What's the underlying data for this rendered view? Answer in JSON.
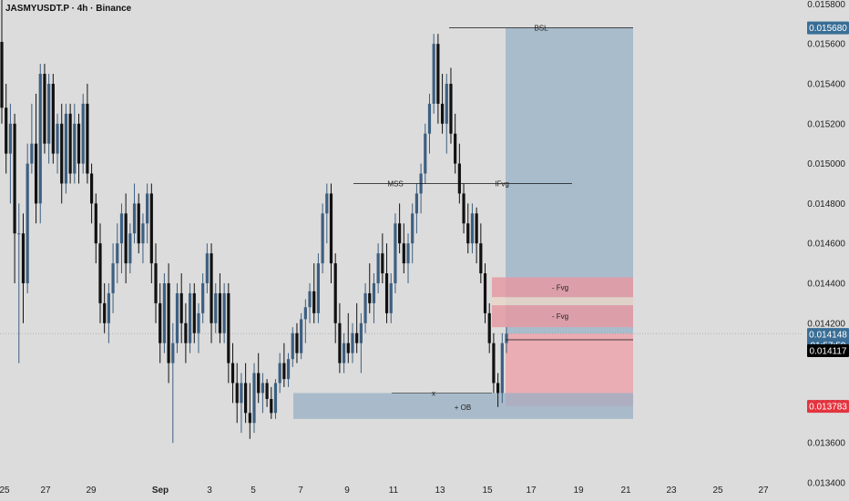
{
  "header": {
    "symbol": "JASMYUSDT.P",
    "sep1": " · ",
    "interval": "4h",
    "sep2": " · ",
    "exchange": "Binance"
  },
  "colors": {
    "bull": "#3d5f80",
    "bear": "#111111",
    "target_zone": "#9fb6c9",
    "ob_zone": "#98b0c4",
    "fvg_zone": "#e59aa3",
    "stop_zone": "#eba4ab",
    "tag_blue": "#3a6e96",
    "tag_black": "#000000",
    "tag_red": "#e3343f"
  },
  "chart_data": {
    "type": "candlestick",
    "ylim": [
      0.0134,
      0.01582
    ],
    "y_ticks": [
      "0.015800",
      "0.015600",
      "0.015400",
      "0.015200",
      "0.015000",
      "0.014800",
      "0.014600",
      "0.014400",
      "0.014200",
      "0.013800",
      "0.013600",
      "0.013400"
    ],
    "x_ticks": [
      "25",
      "27",
      "29",
      "Sep",
      "3",
      "5",
      "7",
      "9",
      "11",
      "13",
      "15",
      "17",
      "19",
      "21",
      "23",
      "25",
      "27"
    ],
    "price_tags": [
      {
        "label": "0.015680",
        "value": 0.01568,
        "style": "blue"
      },
      {
        "label": "0.014148",
        "value": 0.014148,
        "style": "blue"
      },
      {
        "label": "01:57:59",
        "value": 0.0141,
        "style": "blue"
      },
      {
        "label": "0.014117",
        "value": 0.014117,
        "style": "black"
      },
      {
        "label": "0.013783",
        "value": 0.013783,
        "style": "red"
      }
    ],
    "annotations": {
      "bsl": "BSL",
      "mss": "MSS",
      "ifvg": "IFvg",
      "fvg_upper": "- Fvg",
      "fvg_lower": "- Fvg",
      "ob": "+ OB",
      "x_mark": "x"
    },
    "last_price": 0.014148,
    "candles": [
      [
        0.01561,
        0.01582,
        0.0152,
        0.01528
      ],
      [
        0.01528,
        0.0154,
        0.01495,
        0.01505
      ],
      [
        0.01505,
        0.0153,
        0.0148,
        0.0152
      ],
      [
        0.0152,
        0.01525,
        0.0144,
        0.01465
      ],
      [
        0.01465,
        0.0148,
        0.014,
        0.01465
      ],
      [
        0.01465,
        0.01475,
        0.0142,
        0.0144
      ],
      [
        0.0144,
        0.0151,
        0.01435,
        0.015
      ],
      [
        0.015,
        0.0153,
        0.01495,
        0.0151
      ],
      [
        0.0151,
        0.01535,
        0.0147,
        0.0148
      ],
      [
        0.0148,
        0.0155,
        0.0147,
        0.01545
      ],
      [
        0.01545,
        0.0155,
        0.01505,
        0.0151
      ],
      [
        0.0151,
        0.01545,
        0.015,
        0.0154
      ],
      [
        0.0154,
        0.01545,
        0.015,
        0.01505
      ],
      [
        0.01505,
        0.01525,
        0.01495,
        0.0152
      ],
      [
        0.0152,
        0.0153,
        0.0148,
        0.0149
      ],
      [
        0.0149,
        0.0153,
        0.01485,
        0.01525
      ],
      [
        0.01525,
        0.0153,
        0.0149,
        0.01495
      ],
      [
        0.01495,
        0.0153,
        0.0149,
        0.0152
      ],
      [
        0.0152,
        0.01525,
        0.0149,
        0.015
      ],
      [
        0.015,
        0.01535,
        0.01495,
        0.0153
      ],
      [
        0.0153,
        0.0154,
        0.0149,
        0.01495
      ],
      [
        0.01495,
        0.015,
        0.0147,
        0.0148
      ],
      [
        0.0148,
        0.01485,
        0.0145,
        0.0146
      ],
      [
        0.0146,
        0.0147,
        0.0142,
        0.0143
      ],
      [
        0.0143,
        0.0144,
        0.01415,
        0.0142
      ],
      [
        0.0142,
        0.0144,
        0.0141,
        0.01435
      ],
      [
        0.01435,
        0.0146,
        0.01425,
        0.0145
      ],
      [
        0.0145,
        0.0147,
        0.0144,
        0.0146
      ],
      [
        0.0146,
        0.0148,
        0.01445,
        0.01475
      ],
      [
        0.01475,
        0.01485,
        0.0144,
        0.0145
      ],
      [
        0.0145,
        0.0147,
        0.01445,
        0.01465
      ],
      [
        0.01465,
        0.0149,
        0.0146,
        0.0148
      ],
      [
        0.0148,
        0.01485,
        0.01455,
        0.0146
      ],
      [
        0.0146,
        0.01475,
        0.0145,
        0.0147
      ],
      [
        0.0147,
        0.0149,
        0.0146,
        0.01485
      ],
      [
        0.01485,
        0.0149,
        0.0144,
        0.0145
      ],
      [
        0.0145,
        0.0146,
        0.0142,
        0.0143
      ],
      [
        0.0143,
        0.0144,
        0.014,
        0.0141
      ],
      [
        0.0141,
        0.01445,
        0.01405,
        0.0144
      ],
      [
        0.0144,
        0.0145,
        0.0139,
        0.014
      ],
      [
        0.014,
        0.0142,
        0.0136,
        0.0141
      ],
      [
        0.0141,
        0.0144,
        0.01405,
        0.01435
      ],
      [
        0.01435,
        0.01445,
        0.0141,
        0.0142
      ],
      [
        0.0142,
        0.0143,
        0.014,
        0.0141
      ],
      [
        0.0141,
        0.0144,
        0.01405,
        0.01435
      ],
      [
        0.01435,
        0.0144,
        0.0141,
        0.01415
      ],
      [
        0.01415,
        0.0143,
        0.01405,
        0.01425
      ],
      [
        0.01425,
        0.01445,
        0.0142,
        0.0144
      ],
      [
        0.0144,
        0.0146,
        0.01435,
        0.01455
      ],
      [
        0.01455,
        0.0146,
        0.0141,
        0.0142
      ],
      [
        0.0142,
        0.0144,
        0.01415,
        0.01435
      ],
      [
        0.01435,
        0.01445,
        0.0141,
        0.01415
      ],
      [
        0.01415,
        0.0144,
        0.0141,
        0.01435
      ],
      [
        0.01435,
        0.0144,
        0.0139,
        0.014
      ],
      [
        0.014,
        0.0141,
        0.0138,
        0.0139
      ],
      [
        0.0139,
        0.014,
        0.0137,
        0.0138
      ],
      [
        0.0138,
        0.01395,
        0.01365,
        0.0139
      ],
      [
        0.0139,
        0.014,
        0.0137,
        0.01375
      ],
      [
        0.01375,
        0.0139,
        0.01362,
        0.0137
      ],
      [
        0.0137,
        0.014,
        0.01365,
        0.01395
      ],
      [
        0.01395,
        0.01405,
        0.0138,
        0.01385
      ],
      [
        0.01385,
        0.01395,
        0.01375,
        0.0139
      ],
      [
        0.0139,
        0.01392,
        0.01378,
        0.01382
      ],
      [
        0.01382,
        0.01388,
        0.01372,
        0.01375
      ],
      [
        0.01375,
        0.01392,
        0.01372,
        0.0139
      ],
      [
        0.0139,
        0.01405,
        0.01385,
        0.014
      ],
      [
        0.014,
        0.0141,
        0.01388,
        0.01392
      ],
      [
        0.01392,
        0.01405,
        0.01388,
        0.01402
      ],
      [
        0.01402,
        0.01418,
        0.01398,
        0.01415
      ],
      [
        0.01415,
        0.0142,
        0.014,
        0.01405
      ],
      [
        0.01405,
        0.01425,
        0.01402,
        0.01422
      ],
      [
        0.01422,
        0.01432,
        0.0141,
        0.01428
      ],
      [
        0.01428,
        0.0144,
        0.0142,
        0.01436
      ],
      [
        0.01436,
        0.0145,
        0.0142,
        0.01425
      ],
      [
        0.01425,
        0.01455,
        0.0142,
        0.0145
      ],
      [
        0.0145,
        0.0148,
        0.01445,
        0.01475
      ],
      [
        0.01475,
        0.0149,
        0.0146,
        0.01485
      ],
      [
        0.01485,
        0.0149,
        0.0144,
        0.0145
      ],
      [
        0.0145,
        0.01455,
        0.0141,
        0.0142
      ],
      [
        0.0142,
        0.0143,
        0.01395,
        0.014
      ],
      [
        0.014,
        0.01415,
        0.01395,
        0.0141
      ],
      [
        0.0141,
        0.01425,
        0.014,
        0.01405
      ],
      [
        0.01405,
        0.0142,
        0.014,
        0.01415
      ],
      [
        0.01415,
        0.0143,
        0.01405,
        0.0141
      ],
      [
        0.0141,
        0.01425,
        0.01395,
        0.0142
      ],
      [
        0.0142,
        0.0144,
        0.01415,
        0.01435
      ],
      [
        0.01435,
        0.0145,
        0.01425,
        0.0143
      ],
      [
        0.0143,
        0.01445,
        0.0142,
        0.0144
      ],
      [
        0.0144,
        0.0146,
        0.01435,
        0.01455
      ],
      [
        0.01455,
        0.01465,
        0.0144,
        0.01445
      ],
      [
        0.01445,
        0.0146,
        0.0142,
        0.01425
      ],
      [
        0.01425,
        0.01445,
        0.0142,
        0.0144
      ],
      [
        0.0144,
        0.01475,
        0.01435,
        0.0147
      ],
      [
        0.0147,
        0.0148,
        0.01455,
        0.0146
      ],
      [
        0.0146,
        0.0147,
        0.01445,
        0.0145
      ],
      [
        0.0145,
        0.01465,
        0.0144,
        0.0146
      ],
      [
        0.0146,
        0.0148,
        0.0145,
        0.01475
      ],
      [
        0.01475,
        0.0149,
        0.01465,
        0.01485
      ],
      [
        0.01485,
        0.015,
        0.01475,
        0.01495
      ],
      [
        0.01495,
        0.0152,
        0.0149,
        0.01515
      ],
      [
        0.01515,
        0.01535,
        0.01505,
        0.0153
      ],
      [
        0.0153,
        0.01565,
        0.01525,
        0.0156
      ],
      [
        0.0156,
        0.01565,
        0.0152,
        0.0153
      ],
      [
        0.0153,
        0.01545,
        0.01515,
        0.0152
      ],
      [
        0.0152,
        0.01545,
        0.01505,
        0.0154
      ],
      [
        0.0154,
        0.01548,
        0.0151,
        0.01515
      ],
      [
        0.01515,
        0.01525,
        0.01495,
        0.015
      ],
      [
        0.015,
        0.0151,
        0.0148,
        0.01485
      ],
      [
        0.01485,
        0.0149,
        0.01465,
        0.0147
      ],
      [
        0.0147,
        0.0148,
        0.01455,
        0.0146
      ],
      [
        0.0146,
        0.0148,
        0.01455,
        0.01475
      ],
      [
        0.01475,
        0.01478,
        0.0145,
        0.0146
      ],
      [
        0.0146,
        0.0147,
        0.0144,
        0.01445
      ],
      [
        0.01445,
        0.0145,
        0.0142,
        0.01425
      ],
      [
        0.01425,
        0.0143,
        0.01405,
        0.0141
      ],
      [
        0.0141,
        0.01415,
        0.01385,
        0.0139
      ],
      [
        0.0139,
        0.01395,
        0.01378,
        0.01385
      ],
      [
        0.01385,
        0.01415,
        0.0138,
        0.0141
      ],
      [
        0.0141,
        0.01418,
        0.01405,
        0.014148
      ]
    ]
  }
}
